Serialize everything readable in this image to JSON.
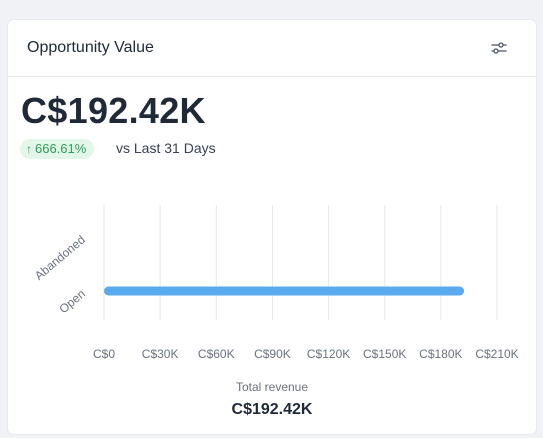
{
  "card": {
    "title": "Opportunity Value",
    "filter_icon": "sliders-icon",
    "value": "C$192.42K",
    "change": {
      "direction_icon": "arrow-up-icon",
      "arrow_glyph": "↑",
      "percent": "666.61%",
      "color": "#2f9e5a",
      "background": "#e3f6ea"
    },
    "compare_label": "vs Last 31 Days",
    "footer_label": "Total revenue",
    "footer_value": "C$192.42K"
  },
  "chart_data": {
    "type": "bar",
    "orientation": "horizontal",
    "categories": [
      "Abandoned",
      "Open"
    ],
    "values": [
      0,
      192420
    ],
    "xlim": [
      0,
      210000
    ],
    "x_ticks": [
      0,
      30000,
      60000,
      90000,
      120000,
      150000,
      180000,
      210000
    ],
    "x_tick_labels": [
      "C$0",
      "C$30K",
      "C$60K",
      "C$90K",
      "C$120K",
      "C$150K",
      "C$180K",
      "C$210K"
    ],
    "grid": true,
    "bar_color": "#5aaaf0",
    "grid_color": "#e5e7eb"
  }
}
